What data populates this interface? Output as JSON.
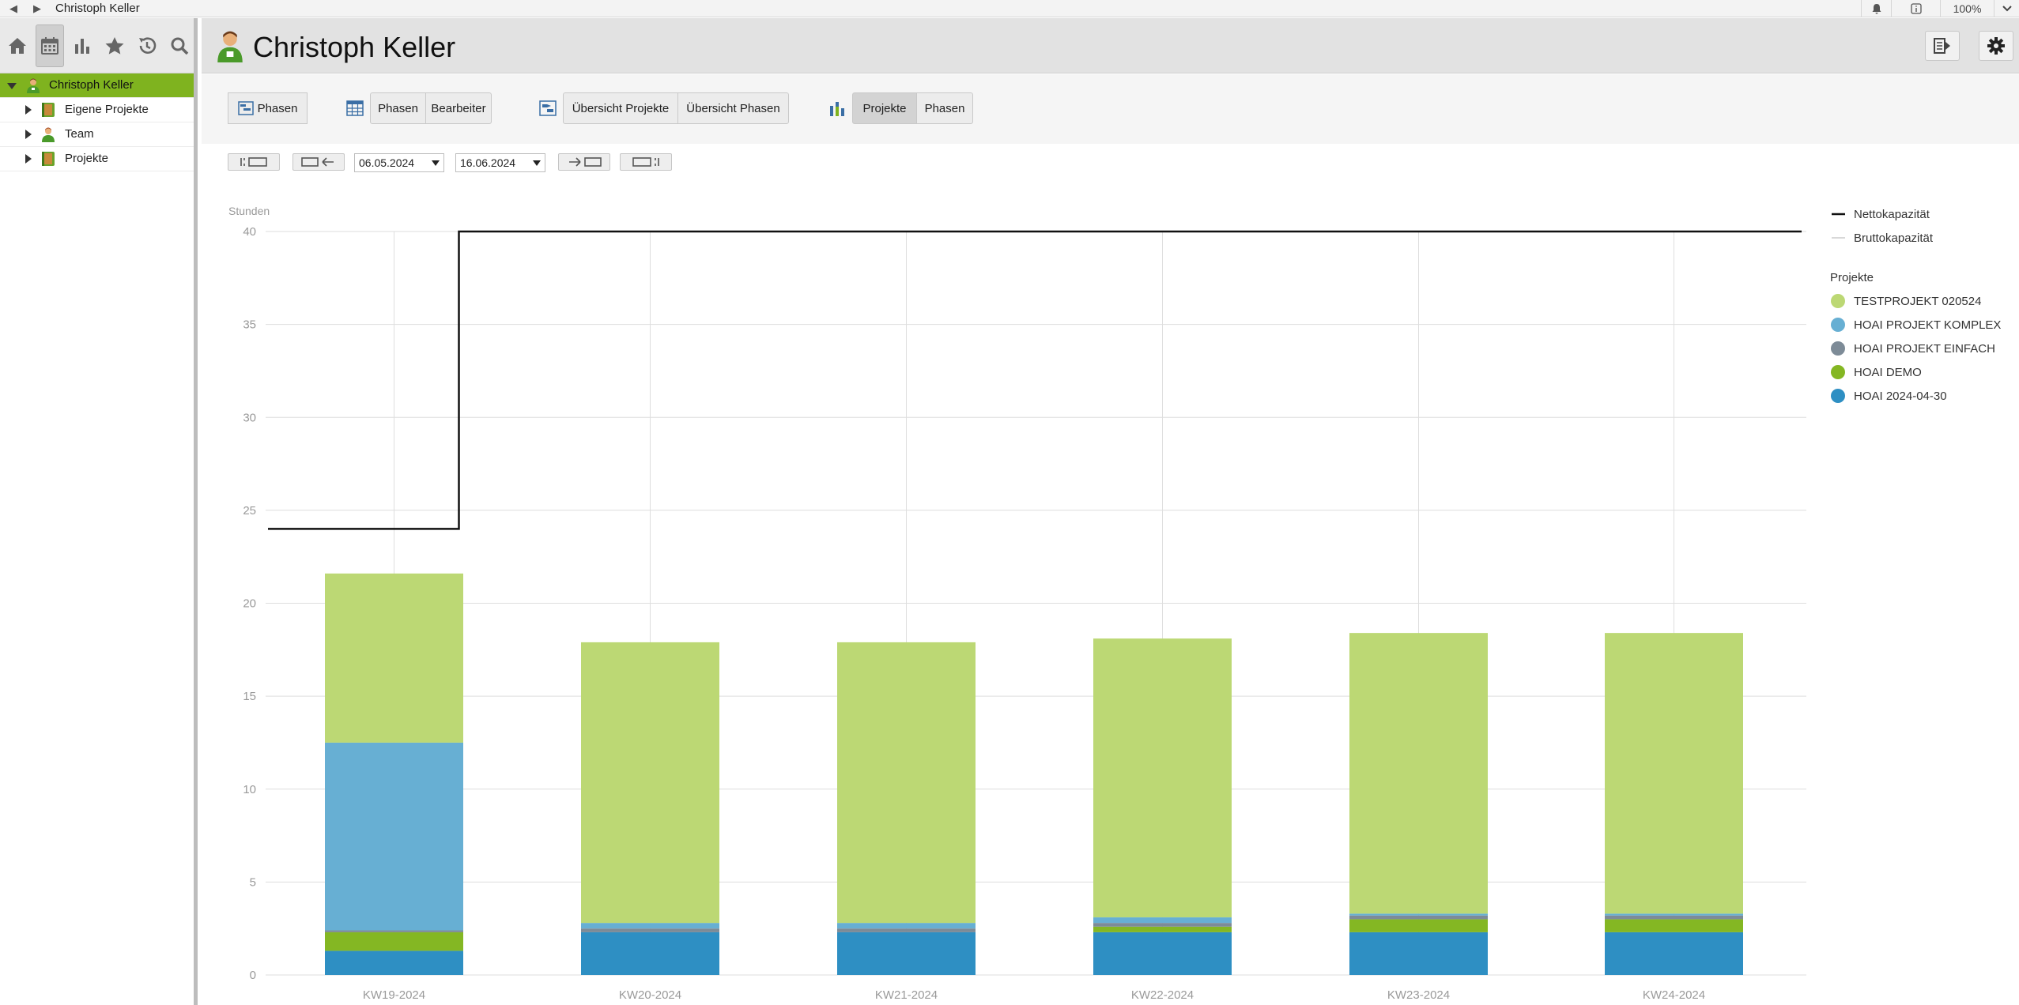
{
  "window": {
    "title": "Christoph Keller",
    "zoom": "100%"
  },
  "sidebar": {
    "tools": [
      "home-icon",
      "calendar-icon",
      "bar-chart-icon",
      "star-icon",
      "history-icon",
      "search-icon"
    ],
    "tree": [
      {
        "label": "Christoph Keller",
        "selected": true,
        "expanded": true
      },
      {
        "label": "Eigene Projekte"
      },
      {
        "label": "Team"
      },
      {
        "label": "Projekte"
      }
    ]
  },
  "header": {
    "title": "Christoph Keller"
  },
  "viewbar": {
    "phasen_single": "Phasen",
    "group1": [
      "Phasen",
      "Bearbeiter"
    ],
    "group2": [
      "Übersicht Projekte",
      "Übersicht Phasen"
    ],
    "group3": [
      "Projekte",
      "Phasen"
    ]
  },
  "datebar": {
    "from": "06.05.2024",
    "to": "16.06.2024"
  },
  "colors": {
    "accent": "#7fb31f",
    "TESTPROJEKT": "#bcd874",
    "KOMPLEX": "#67afd3",
    "EINFACH": "#7d8b97",
    "DEMO": "#84b723",
    "HOAI2024": "#2e8fc3"
  },
  "chart_data": {
    "type": "bar",
    "stacked": true,
    "ylabel": "Stunden",
    "ylim": [
      0,
      40
    ],
    "yticks": [
      0,
      5,
      10,
      15,
      20,
      25,
      30,
      35,
      40
    ],
    "grid": true,
    "legend_position": "right",
    "categories": [
      "KW19-2024",
      "KW20-2024",
      "KW21-2024",
      "KW22-2024",
      "KW23-2024",
      "KW24-2024"
    ],
    "legend_lines": [
      "Nettokapazität",
      "Bruttokapazität"
    ],
    "legend_group_title": "Projekte",
    "series": [
      {
        "name": "HOAI 2024-04-30",
        "color": "#2e8fc3",
        "values": [
          1.3,
          2.3,
          2.3,
          2.3,
          2.3,
          2.3
        ]
      },
      {
        "name": "HOAI DEMO",
        "color": "#84b723",
        "values": [
          1.0,
          0.0,
          0.0,
          0.3,
          0.7,
          0.7
        ]
      },
      {
        "name": "HOAI PROJEKT EINFACH",
        "color": "#7d8b97",
        "values": [
          0.1,
          0.2,
          0.2,
          0.2,
          0.2,
          0.2
        ]
      },
      {
        "name": "HOAI PROJEKT KOMPLEX",
        "color": "#67afd3",
        "values": [
          10.1,
          0.3,
          0.3,
          0.3,
          0.1,
          0.1
        ]
      },
      {
        "name": "TESTPROJEKT 020524",
        "color": "#bcd874",
        "values": [
          9.1,
          15.1,
          15.1,
          15.0,
          15.1,
          15.1
        ]
      }
    ],
    "legend_order": [
      "TESTPROJEKT 020524",
      "HOAI PROJEKT KOMPLEX",
      "HOAI PROJEKT EINFACH",
      "HOAI DEMO",
      "HOAI 2024-04-30"
    ],
    "netto_capacity": [
      24,
      40,
      40,
      40,
      40,
      40
    ]
  }
}
